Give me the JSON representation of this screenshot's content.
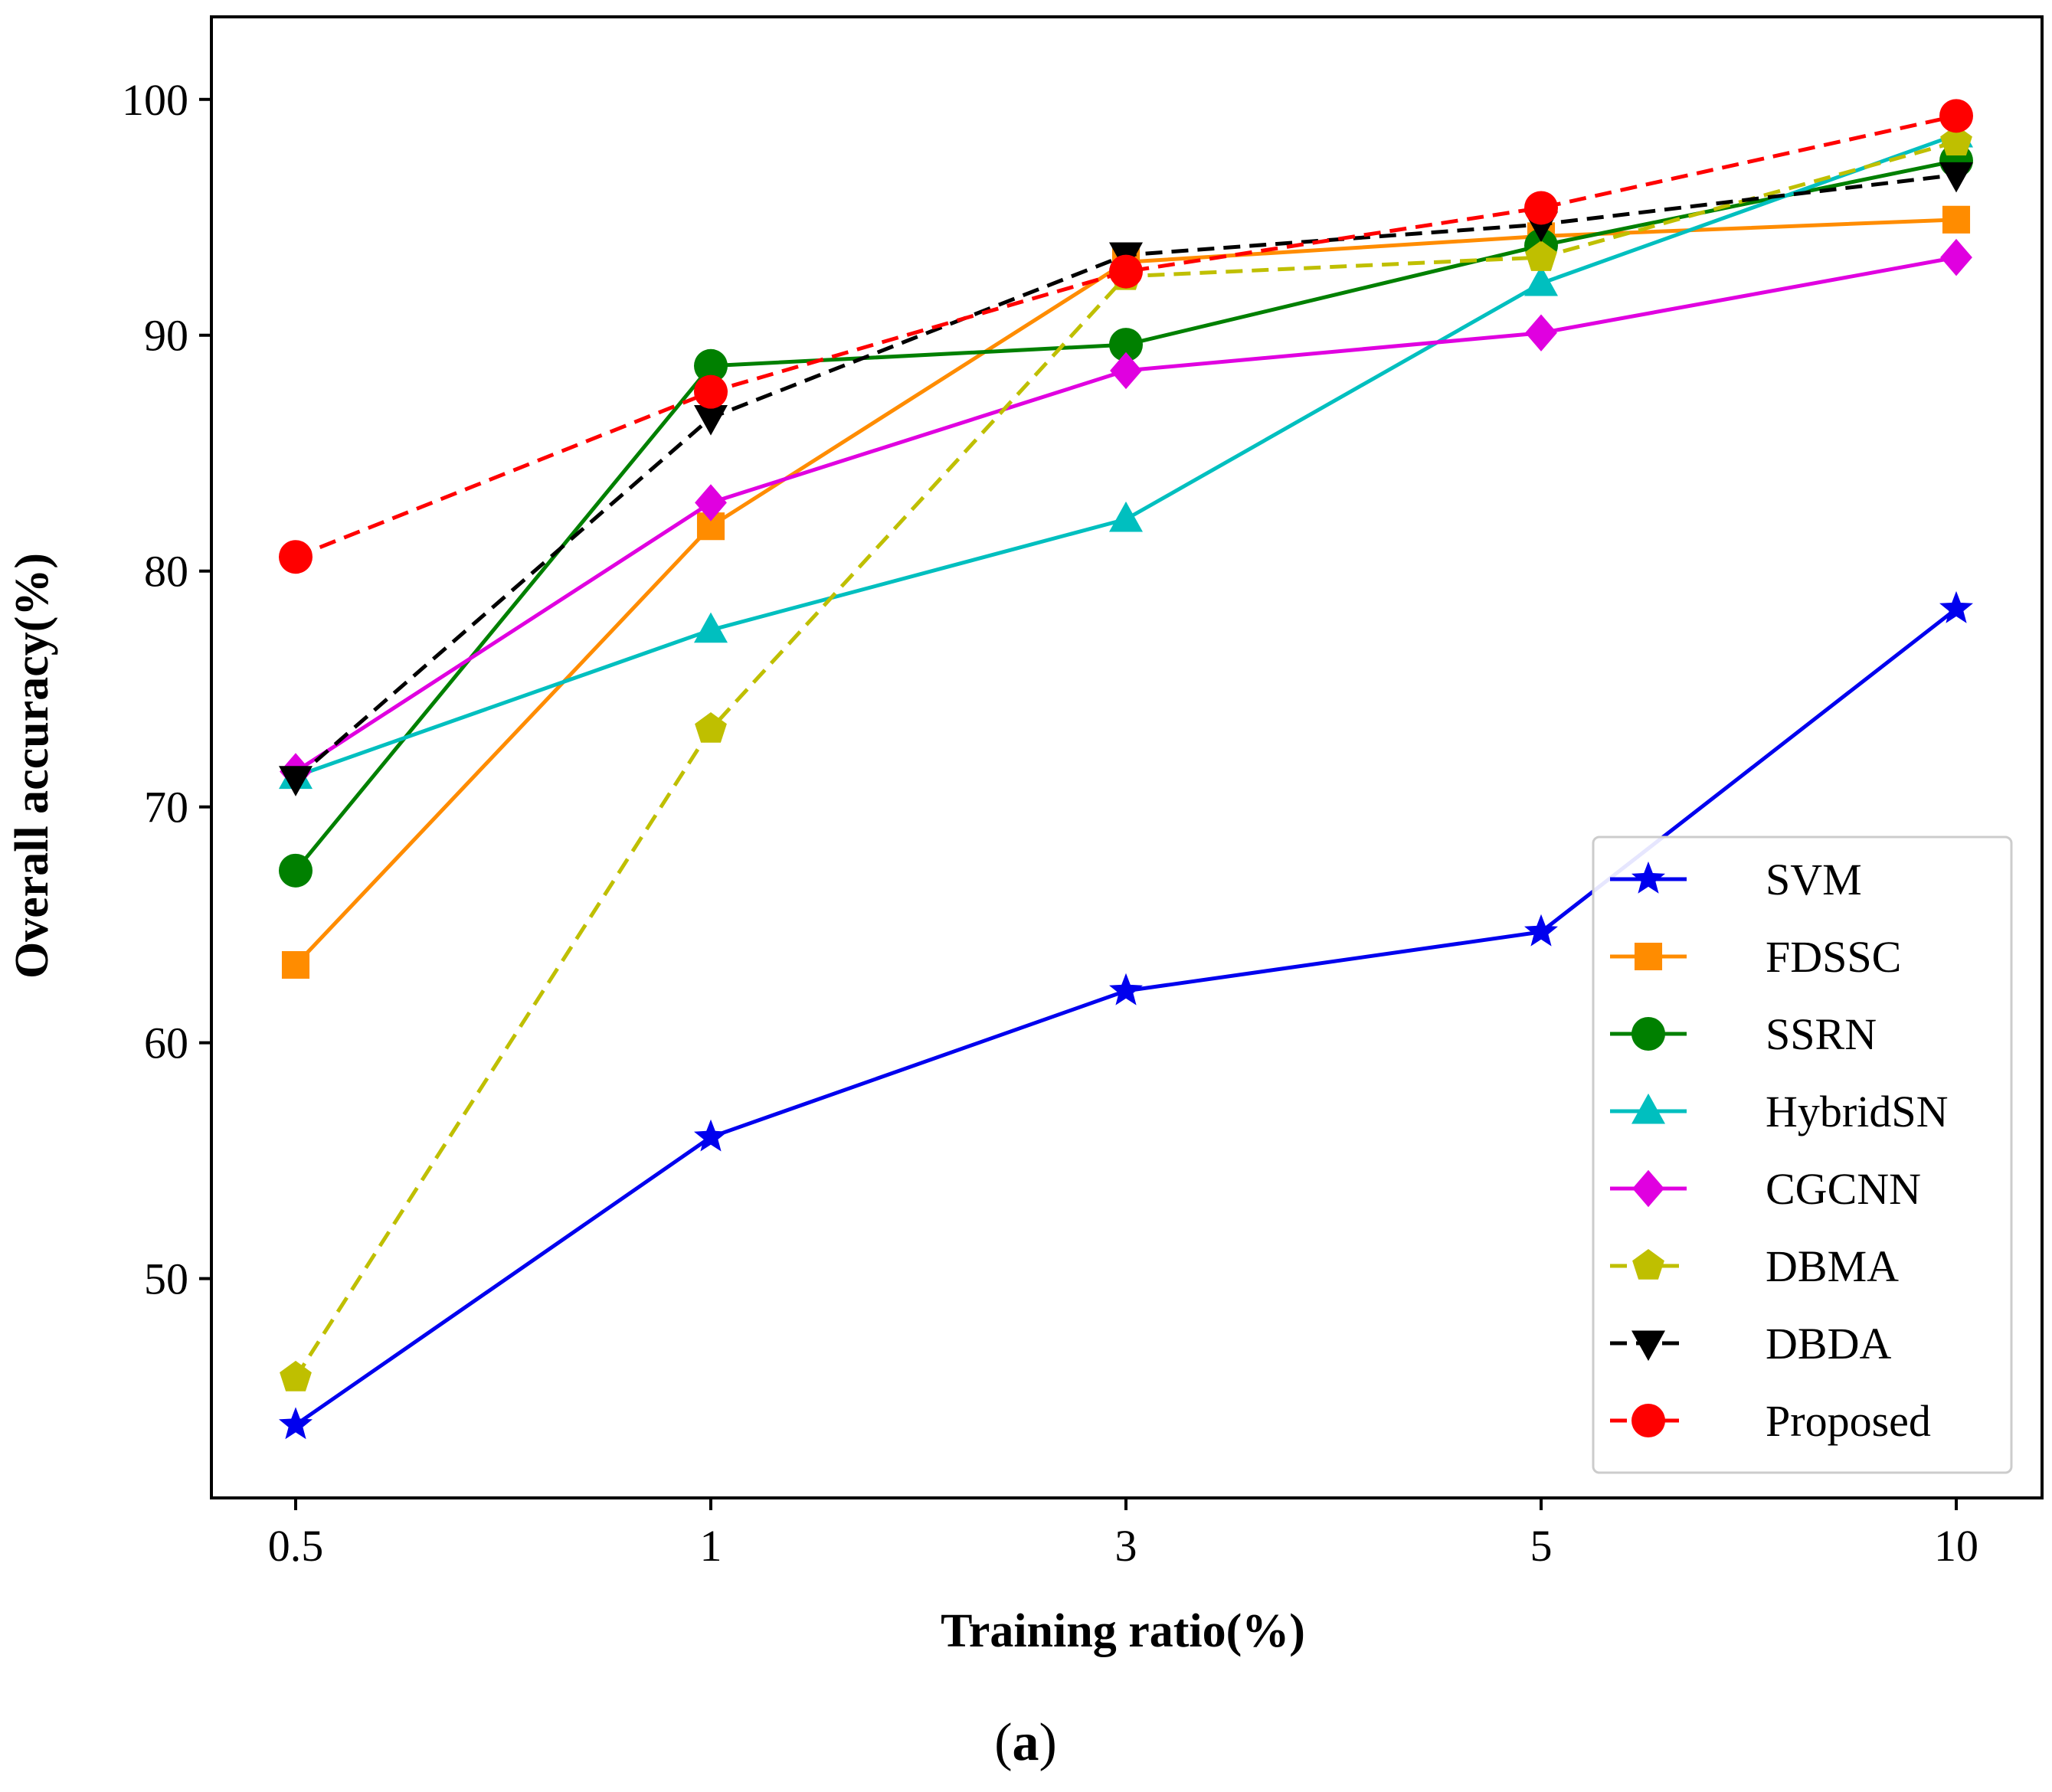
{
  "chart_data": {
    "type": "line",
    "categories": [
      "0.5",
      "1",
      "3",
      "5",
      "10"
    ],
    "xlabel": "Training ratio(%)",
    "ylabel": "Overall accuracy(%)",
    "ylim": [
      40.7,
      103.5
    ],
    "yticks": [
      50,
      60,
      70,
      80,
      90,
      100
    ],
    "ytick_labels": [
      "50",
      "60",
      "70",
      "80",
      "90",
      "100"
    ],
    "legend_position": "lower-right",
    "grid": false,
    "series": [
      {
        "name": "SVM",
        "values": [
          43.8,
          56.0,
          62.2,
          64.7,
          78.4
        ],
        "color": "#0000ee",
        "dashed": false,
        "marker": "star"
      },
      {
        "name": "FDSSC",
        "values": [
          63.3,
          81.9,
          93.1,
          94.2,
          94.9
        ],
        "color": "#ff8c00",
        "dashed": false,
        "marker": "square"
      },
      {
        "name": "SSRN",
        "values": [
          67.3,
          88.7,
          89.6,
          93.8,
          97.4
        ],
        "color": "#008000",
        "dashed": false,
        "marker": "circle"
      },
      {
        "name": "HybridSN",
        "values": [
          71.3,
          77.5,
          82.2,
          92.2,
          98.5
        ],
        "color": "#00bfbf",
        "dashed": false,
        "marker": "triangle-up"
      },
      {
        "name": "CGCNN",
        "values": [
          71.5,
          82.9,
          88.5,
          90.1,
          93.3
        ],
        "color": "#e000e0",
        "dashed": false,
        "marker": "diamond"
      },
      {
        "name": "DBMA",
        "values": [
          45.8,
          73.3,
          92.5,
          93.3,
          98.2
        ],
        "color": "#bfbf00",
        "dashed": true,
        "marker": "pentagon"
      },
      {
        "name": "DBDA",
        "values": [
          71.2,
          86.5,
          93.4,
          94.7,
          96.8
        ],
        "color": "#000000",
        "dashed": true,
        "marker": "triangle-down"
      },
      {
        "name": "Proposed",
        "values": [
          80.6,
          87.6,
          92.7,
          95.4,
          99.3
        ],
        "color": "#ff0000",
        "dashed": true,
        "marker": "circle"
      }
    ]
  },
  "caption": {
    "open": "(",
    "letter": "a",
    "close": ")"
  }
}
